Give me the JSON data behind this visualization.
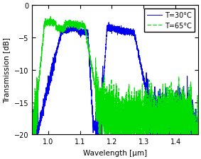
{
  "title": "",
  "xlabel": "Wavelength [μm]",
  "ylabel": "Transmission [dB]",
  "xlim": [
    0.95,
    1.47
  ],
  "ylim": [
    -20,
    0
  ],
  "yticks": [
    0,
    -5,
    -10,
    -15,
    -20
  ],
  "xticks": [
    1.0,
    1.1,
    1.2,
    1.3,
    1.4
  ],
  "legend_labels": [
    "T=30°C",
    "T=65°C"
  ],
  "blue_color": "#0000EE",
  "green_color": "#00DD00",
  "bg_color": "#FFFFFF",
  "figsize": [
    2.83,
    2.26
  ],
  "dpi": 100
}
